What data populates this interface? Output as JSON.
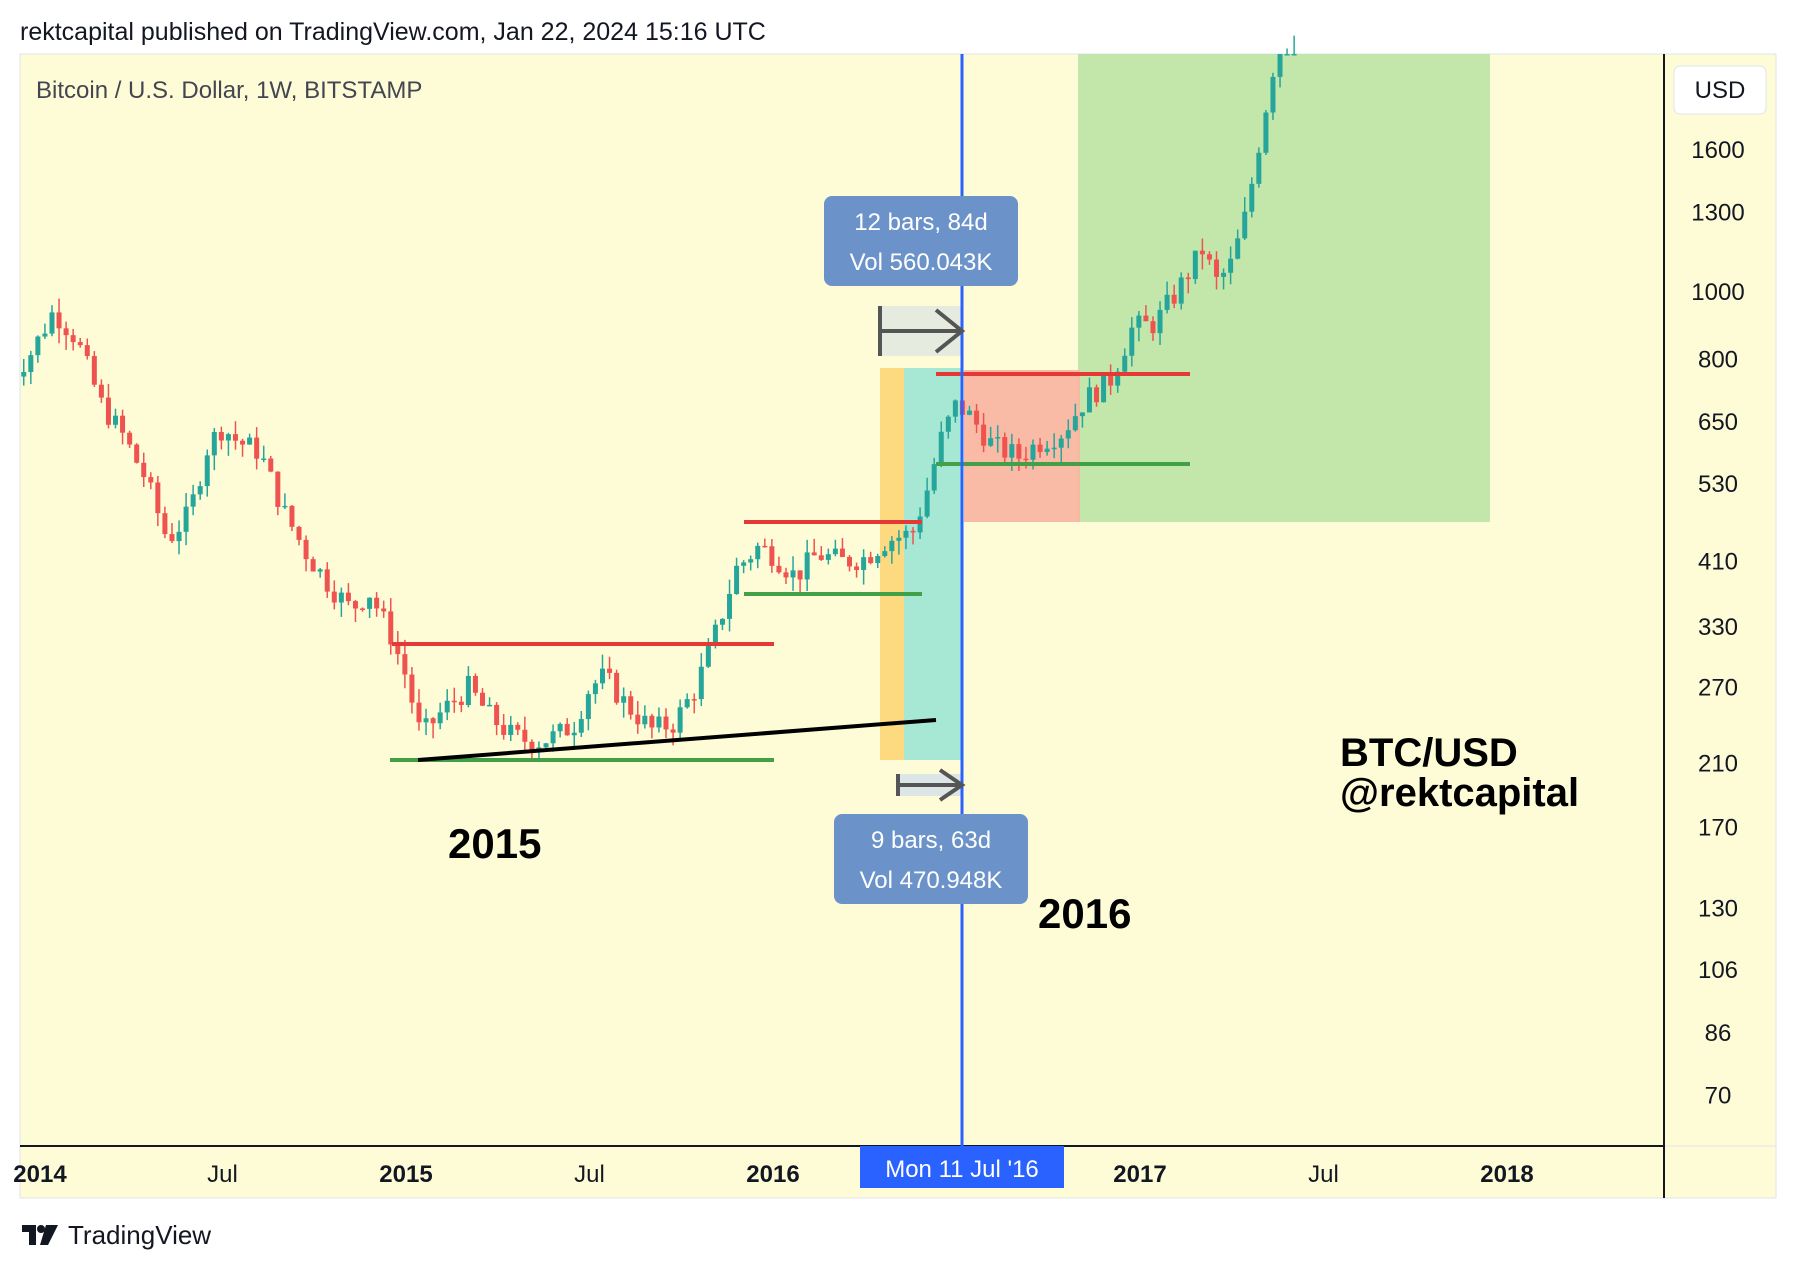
{
  "header": {
    "published_by": "rektcapital published on TradingView.com, Jan 22, 2024 15:16 UTC"
  },
  "footer": {
    "brand": "TradingView"
  },
  "chart_data": {
    "type": "candlestick",
    "title": "Bitcoin / U.S. Dollar, 1W, BITSTAMP",
    "currency_button": "USD",
    "y_scale": "log",
    "y_ticks": [
      "1600",
      "1300",
      "1000",
      "800",
      "650",
      "530",
      "410",
      "330",
      "270",
      "210",
      "170",
      "130",
      "106",
      "86",
      "70"
    ],
    "x_ticks": [
      "2014",
      "Jul",
      "2015",
      "Jul",
      "2016",
      "Jul '16",
      "2017",
      "Jul",
      "2018"
    ],
    "crosshair_label": "Mon 11 Jul '16",
    "colors": {
      "background": "#fefcd6",
      "up": "#26a69a",
      "down": "#ef5350",
      "crosshair": "#2962ff",
      "resistance": "#e53935",
      "support": "#43a047",
      "trendline": "#000000",
      "green_zone": "#b9e3a3",
      "red_zone": "#f8b4a0",
      "orange_zone": "#fdd97f",
      "teal_zone": "#a7e8d4",
      "measure_box": "#6b93c9"
    },
    "annotations": {
      "label_2015": "2015",
      "label_2016": "2016",
      "pair": "BTC/USD",
      "handle": "@rektcapital",
      "measure_top": {
        "bars": "12 bars, 84d",
        "vol": "Vol 560.043K"
      },
      "measure_bottom": {
        "bars": "9 bars, 63d",
        "vol": "Vol 470.948K"
      }
    },
    "levels": {
      "range2015_resistance": 310,
      "range2015_support": 212,
      "range2016_resistance": 470,
      "range2016_support": 375,
      "range2016b_resistance": 780,
      "range2016b_support": 570,
      "trendline": [
        [
          2015.0,
          213
        ],
        [
          2016.5,
          245
        ]
      ]
    },
    "series_points": [
      [
        2013.92,
        750
      ],
      [
        2013.98,
        820
      ],
      [
        2014.04,
        940
      ],
      [
        2014.1,
        860
      ],
      [
        2014.17,
        690
      ],
      [
        2014.23,
        620
      ],
      [
        2014.29,
        540
      ],
      [
        2014.35,
        440
      ],
      [
        2014.41,
        480
      ],
      [
        2014.46,
        600
      ],
      [
        2014.5,
        640
      ],
      [
        2014.54,
        610
      ],
      [
        2014.6,
        590
      ],
      [
        2014.67,
        480
      ],
      [
        2014.73,
        420
      ],
      [
        2014.79,
        380
      ],
      [
        2014.85,
        350
      ],
      [
        2014.9,
        370
      ],
      [
        2014.96,
        320
      ],
      [
        2015.0,
        280
      ],
      [
        2015.04,
        230
      ],
      [
        2015.1,
        250
      ],
      [
        2015.17,
        270
      ],
      [
        2015.23,
        245
      ],
      [
        2015.29,
        230
      ],
      [
        2015.35,
        225
      ],
      [
        2015.41,
        230
      ],
      [
        2015.46,
        240
      ],
      [
        2015.5,
        270
      ],
      [
        2015.54,
        280
      ],
      [
        2015.6,
        255
      ],
      [
        2015.67,
        235
      ],
      [
        2015.73,
        240
      ],
      [
        2015.79,
        270
      ],
      [
        2015.85,
        330
      ],
      [
        2015.9,
        400
      ],
      [
        2015.96,
        430
      ],
      [
        2016.0,
        420
      ],
      [
        2016.06,
        390
      ],
      [
        2016.12,
        420
      ],
      [
        2016.19,
        410
      ],
      [
        2016.25,
        415
      ],
      [
        2016.31,
        440
      ],
      [
        2016.38,
        450
      ],
      [
        2016.42,
        520
      ],
      [
        2016.46,
        620
      ],
      [
        2016.5,
        690
      ],
      [
        2016.54,
        660
      ],
      [
        2016.6,
        600
      ],
      [
        2016.67,
        580
      ],
      [
        2016.73,
        610
      ],
      [
        2016.79,
        630
      ],
      [
        2016.85,
        700
      ],
      [
        2016.92,
        750
      ],
      [
        2016.98,
        890
      ],
      [
        2017.04,
        900
      ],
      [
        2017.1,
        1000
      ],
      [
        2017.17,
        1150
      ],
      [
        2017.21,
        1030
      ],
      [
        2017.25,
        1100
      ],
      [
        2017.29,
        1300
      ],
      [
        2017.33,
        1700
      ],
      [
        2017.37,
        2200
      ],
      [
        2017.42,
        2600
      ]
    ]
  }
}
